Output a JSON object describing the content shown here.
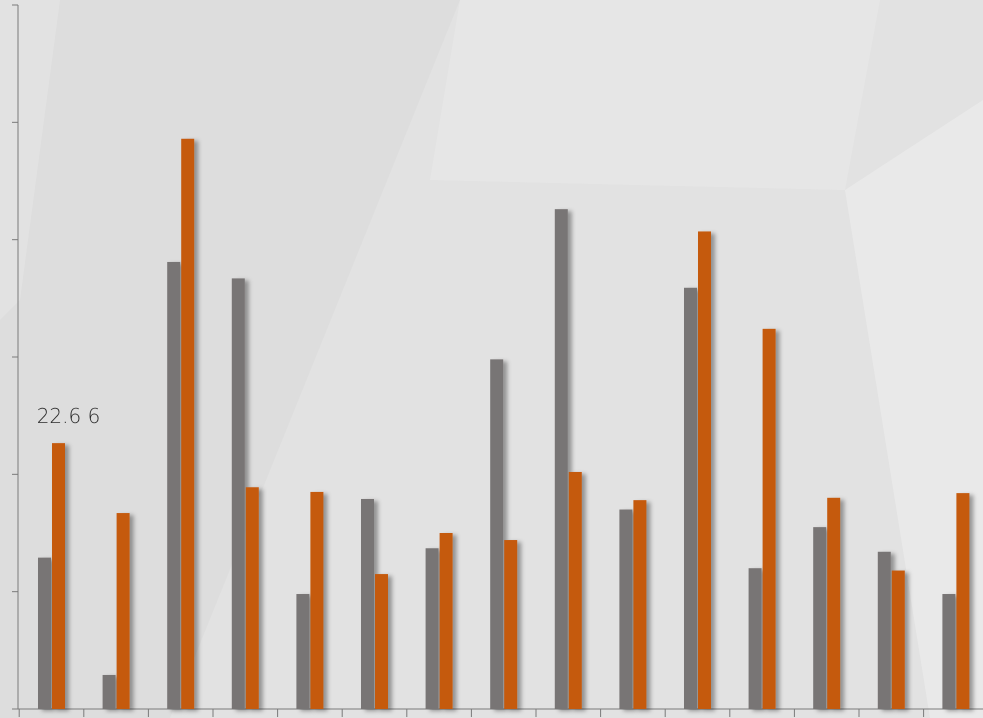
{
  "colors": {
    "series_gray": "#787474",
    "series_orange": "#c55a11",
    "axis": "#7a7a7a",
    "background": "#e2e2e2"
  },
  "chart_data": {
    "type": "bar",
    "categories": [
      "",
      "",
      "",
      "",
      "",
      "",
      "",
      "",
      "",
      "",
      "",
      "",
      "",
      "",
      ""
    ],
    "series": [
      {
        "values": [
          12.9,
          2.9,
          38.1,
          36.7,
          9.8,
          17.9,
          13.7,
          29.8,
          42.6,
          17.0,
          35.9,
          12.0,
          15.5,
          13.4,
          9.8
        ]
      },
      {
        "values": [
          22.66,
          16.7,
          48.6,
          18.9,
          18.5,
          11.5,
          15.0,
          14.4,
          20.2,
          17.8,
          40.7,
          32.4,
          18.0,
          11.8,
          18.4
        ]
      }
    ],
    "ylim": [
      0,
      60
    ],
    "annotations": [
      {
        "text": "22.6 6",
        "category_index": 0,
        "series_index": 1
      }
    ],
    "grid": false,
    "legend": "none"
  }
}
